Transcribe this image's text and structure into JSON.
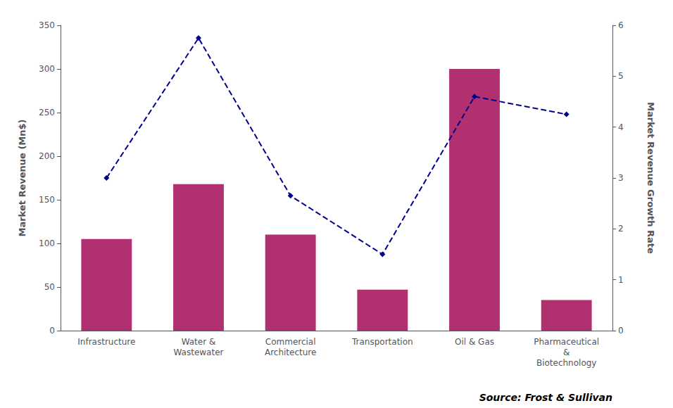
{
  "chart_data": {
    "type": "bar",
    "categories": [
      "Infrastructure",
      "Water &\nWastewater",
      "Commercial\nArchitecture",
      "Transportation",
      "Oil & Gas",
      "Pharmaceutical\n&\nBiotechnology"
    ],
    "series": [
      {
        "type": "bar",
        "color": "#b03070",
        "values": [
          105,
          168,
          110,
          47,
          300,
          35
        ]
      },
      {
        "type": "line",
        "axis": "y2",
        "color": "#00008b",
        "marker": "diamond",
        "line_style": "dashed",
        "values": [
          3.0,
          5.75,
          2.65,
          1.5,
          4.6,
          4.25
        ]
      }
    ],
    "ylabel": "Market Revenue (Mn$)",
    "y2label": "Market Revenue Growth Rate",
    "ylim": [
      0,
      350
    ],
    "yticks": [
      0,
      50,
      100,
      150,
      200,
      250,
      300,
      350
    ],
    "y2lim": [
      0,
      6
    ],
    "y2ticks": [
      0,
      1,
      2,
      3,
      4,
      5,
      6
    ],
    "annotations": [
      "Source: Frost & Sullivan"
    ],
    "grid": false
  }
}
